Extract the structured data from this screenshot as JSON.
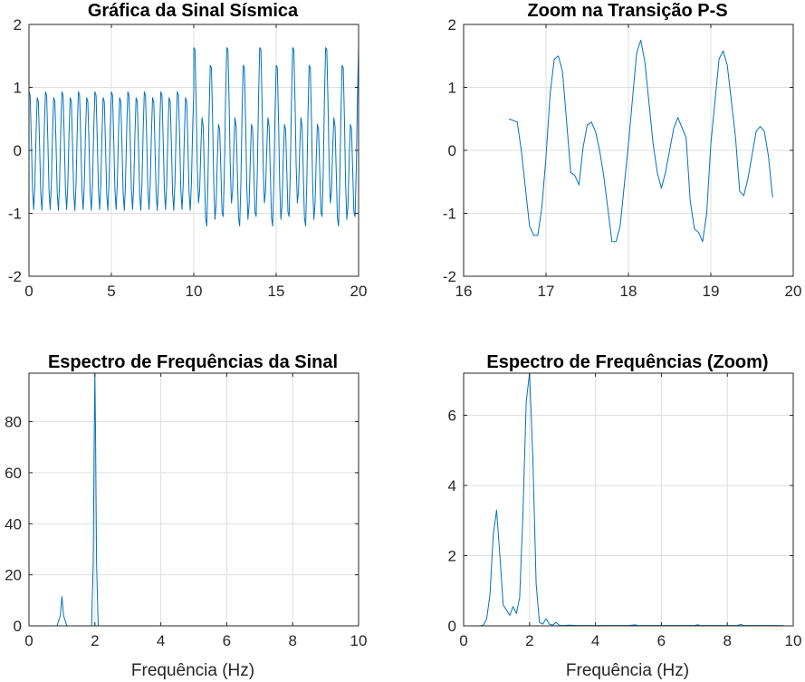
{
  "chart_data": [
    {
      "id": "p1",
      "type": "line",
      "title": "Gráfica da Sinal Sísmica",
      "xlabel": "",
      "ylabel": "",
      "xlim": [
        0,
        20
      ],
      "ylim": [
        -2,
        2
      ],
      "xticks": [
        0,
        5,
        10,
        15,
        20
      ],
      "yticks": [
        -2,
        -1,
        0,
        1,
        2
      ],
      "grid": true,
      "series": [
        {
          "color": "#0072bd",
          "signal": [
            {
              "t0": 0,
              "t1": 10,
              "components": [
                {
                  "freq": 2,
                  "amp": 0.95
                },
                {
                  "freq": 1,
                  "amp": 0.05
                }
              ]
            },
            {
              "t0": 10,
              "t1": 20,
              "components": [
                {
                  "freq": 1,
                  "amp": 0.55
                },
                {
                  "freq": 2,
                  "amp": 1.05
                },
                {
                  "freq": 0.5,
                  "amp": 0.15
                }
              ]
            }
          ]
        }
      ]
    },
    {
      "id": "p2",
      "type": "line",
      "title": "Zoom na Transição P-S",
      "xlabel": "",
      "ylabel": "",
      "xlim": [
        16,
        20
      ],
      "ylim": [
        -2,
        2
      ],
      "xticks": [
        16,
        17,
        18,
        19,
        20
      ],
      "yticks": [
        -2,
        -1,
        0,
        1,
        2
      ],
      "grid": true,
      "series": [
        {
          "color": "#0072bd",
          "x": [
            16.55,
            16.65,
            16.7,
            16.8,
            16.85,
            16.9,
            16.95,
            17.0,
            17.05,
            17.1,
            17.15,
            17.2,
            17.3,
            17.35,
            17.4,
            17.45,
            17.5,
            17.55,
            17.6,
            17.65,
            17.7,
            17.8,
            17.85,
            17.9,
            18.0,
            18.1,
            18.15,
            18.2,
            18.3,
            18.35,
            18.4,
            18.45,
            18.55,
            18.6,
            18.7,
            18.75,
            18.8,
            18.85,
            18.9,
            18.95,
            19.0,
            19.1,
            19.15,
            19.2,
            19.3,
            19.35,
            19.4,
            19.45,
            19.55,
            19.6,
            19.65,
            19.7,
            19.75
          ],
          "y": [
            0.5,
            0.45,
            0.0,
            -1.2,
            -1.35,
            -1.35,
            -0.9,
            -0.1,
            0.9,
            1.45,
            1.5,
            1.25,
            -0.35,
            -0.4,
            -0.55,
            0.05,
            0.4,
            0.45,
            0.3,
            0.0,
            -0.4,
            -1.45,
            -1.45,
            -1.2,
            0.1,
            1.55,
            1.75,
            1.4,
            0.1,
            -0.35,
            -0.6,
            -0.35,
            0.35,
            0.52,
            0.2,
            -0.8,
            -1.25,
            -1.3,
            -1.45,
            -1.0,
            0.1,
            1.45,
            1.58,
            1.35,
            0.2,
            -0.65,
            -0.72,
            -0.45,
            0.3,
            0.38,
            0.3,
            -0.1,
            -0.75
          ]
        }
      ]
    },
    {
      "id": "p3",
      "type": "line",
      "title": "Espectro de Frequências da Sinal",
      "xlabel": "Frequência (Hz)",
      "ylabel": "",
      "xlim": [
        0,
        10
      ],
      "ylim": [
        0,
        99
      ],
      "xticks": [
        0,
        2,
        4,
        6,
        8,
        10
      ],
      "yticks": [
        0,
        20,
        40,
        60,
        80
      ],
      "grid": true,
      "series": [
        {
          "color": "#0072bd",
          "x": [
            0,
            0.85,
            0.95,
            1.0,
            1.05,
            1.15,
            1.9,
            1.95,
            1.98,
            2.0,
            2.02,
            2.05,
            2.1,
            10
          ],
          "y": [
            0,
            0,
            4,
            11.5,
            4,
            0,
            0,
            25,
            75,
            99,
            75,
            25,
            0,
            0
          ]
        }
      ]
    },
    {
      "id": "p4",
      "type": "line",
      "title": "Espectro de Frequências (Zoom)",
      "xlabel": "Frequência (Hz)",
      "ylabel": "",
      "xlim": [
        0,
        10
      ],
      "ylim": [
        0,
        7.2
      ],
      "xticks": [
        0,
        2,
        4,
        6,
        8,
        10
      ],
      "yticks": [
        0,
        2,
        4,
        6
      ],
      "grid": true,
      "series": [
        {
          "color": "#0072bd",
          "x": [
            0.4,
            0.5,
            0.6,
            0.7,
            0.8,
            0.9,
            1.0,
            1.1,
            1.2,
            1.3,
            1.4,
            1.5,
            1.6,
            1.7,
            1.8,
            1.9,
            2.0,
            2.1,
            2.2,
            2.3,
            2.4,
            2.5,
            2.6,
            2.7,
            2.8,
            2.9,
            3.0,
            3.2,
            3.5,
            4.0,
            5.0,
            5.2,
            5.3,
            5.4,
            6.0,
            7.0,
            7.1,
            7.2,
            8.0,
            8.3,
            8.4,
            8.5,
            9.0,
            9.7
          ],
          "y": [
            0,
            0,
            0.02,
            0.2,
            0.9,
            2.6,
            3.3,
            2.0,
            0.6,
            0.45,
            0.3,
            0.55,
            0.35,
            0.8,
            3.2,
            6.4,
            7.2,
            4.8,
            1.2,
            0.1,
            0.05,
            0.2,
            0.05,
            0.02,
            0.1,
            0.02,
            0.01,
            0.02,
            0.01,
            0.01,
            0.01,
            0.03,
            0.01,
            0.01,
            0.01,
            0.01,
            0.03,
            0.01,
            0.01,
            0.01,
            0.04,
            0.01,
            0.01,
            0.01
          ]
        }
      ]
    }
  ]
}
